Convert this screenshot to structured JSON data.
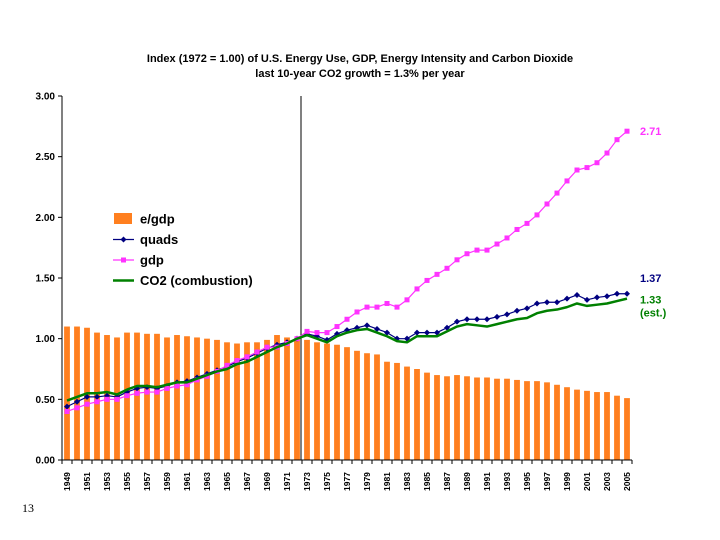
{
  "page_number": "13",
  "chart_data": {
    "type": "bar",
    "title": "Index (1972 = 1.00) of U.S. Energy Use, GDP,  Energy Intensity and Carbon Dioxide",
    "subtitle": "last 10-year CO2 growth = 1.3% per year",
    "xlabel": "",
    "ylabel": "",
    "ylim": [
      0,
      3
    ],
    "y_ticks": [
      "0.00",
      "0.50",
      "1.00",
      "1.50",
      "2.00",
      "2.50",
      "3.00"
    ],
    "x": [
      1949,
      1950,
      1951,
      1952,
      1953,
      1954,
      1955,
      1956,
      1957,
      1958,
      1959,
      1960,
      1961,
      1962,
      1963,
      1964,
      1965,
      1966,
      1967,
      1968,
      1969,
      1970,
      1971,
      1972,
      1973,
      1974,
      1975,
      1976,
      1977,
      1978,
      1979,
      1980,
      1981,
      1982,
      1983,
      1984,
      1985,
      1986,
      1987,
      1988,
      1989,
      1990,
      1991,
      1992,
      1993,
      1994,
      1995,
      1996,
      1997,
      1998,
      1999,
      2000,
      2001,
      2002,
      2003,
      2004,
      2005
    ],
    "x_tick_labels": [
      "1949",
      "1951",
      "1953",
      "1955",
      "1957",
      "1959",
      "1961",
      "1963",
      "1965",
      "1967",
      "1969",
      "1971",
      "1973",
      "1975",
      "1977",
      "1979",
      "1981",
      "1983",
      "1985",
      "1987",
      "1989",
      "1991",
      "1993",
      "1995",
      "1997",
      "1999",
      "2001",
      "2003",
      "2005"
    ],
    "reference_line_x": 1972,
    "legend_position": "upper-left",
    "grid": false,
    "series": [
      {
        "name": "e/gdp",
        "kind": "bar",
        "color": "#ff7f1f",
        "values": [
          1.1,
          1.1,
          1.09,
          1.05,
          1.03,
          1.01,
          1.05,
          1.05,
          1.04,
          1.04,
          1.01,
          1.03,
          1.02,
          1.01,
          1.0,
          0.99,
          0.97,
          0.96,
          0.97,
          0.97,
          0.99,
          1.03,
          1.01,
          1.0,
          0.99,
          0.97,
          0.96,
          0.95,
          0.93,
          0.9,
          0.88,
          0.87,
          0.81,
          0.8,
          0.77,
          0.75,
          0.72,
          0.7,
          0.69,
          0.7,
          0.69,
          0.68,
          0.68,
          0.67,
          0.67,
          0.66,
          0.65,
          0.65,
          0.64,
          0.62,
          0.6,
          0.58,
          0.57,
          0.56,
          0.56,
          0.53,
          0.51
        ]
      },
      {
        "name": "quads",
        "kind": "line",
        "color": "#000080",
        "marker": "diamond",
        "values": [
          0.44,
          0.48,
          0.52,
          0.52,
          0.53,
          0.52,
          0.56,
          0.59,
          0.6,
          0.59,
          0.61,
          0.64,
          0.65,
          0.68,
          0.71,
          0.74,
          0.77,
          0.81,
          0.84,
          0.88,
          0.92,
          0.95,
          0.97,
          1.0,
          1.04,
          1.02,
          0.99,
          1.04,
          1.07,
          1.09,
          1.11,
          1.08,
          1.05,
          1.0,
          1.0,
          1.05,
          1.05,
          1.05,
          1.09,
          1.14,
          1.16,
          1.16,
          1.16,
          1.18,
          1.2,
          1.23,
          1.25,
          1.29,
          1.3,
          1.3,
          1.33,
          1.36,
          1.32,
          1.34,
          1.35,
          1.37,
          1.37
        ]
      },
      {
        "name": "gdp",
        "kind": "line",
        "color": "#ff33ff",
        "marker": "square",
        "values": [
          0.4,
          0.43,
          0.46,
          0.48,
          0.5,
          0.5,
          0.53,
          0.55,
          0.56,
          0.56,
          0.59,
          0.61,
          0.62,
          0.66,
          0.69,
          0.73,
          0.78,
          0.82,
          0.85,
          0.89,
          0.93,
          0.93,
          0.96,
          1.0,
          1.06,
          1.05,
          1.05,
          1.1,
          1.16,
          1.22,
          1.26,
          1.26,
          1.29,
          1.26,
          1.32,
          1.41,
          1.48,
          1.53,
          1.58,
          1.65,
          1.7,
          1.73,
          1.73,
          1.78,
          1.83,
          1.9,
          1.95,
          2.02,
          2.11,
          2.2,
          2.3,
          2.39,
          2.41,
          2.45,
          2.53,
          2.64,
          2.71
        ]
      },
      {
        "name": "CO2 (combustion)",
        "kind": "line",
        "color": "#008000",
        "marker": "none",
        "values": [
          0.49,
          0.52,
          0.55,
          0.55,
          0.56,
          0.54,
          0.58,
          0.61,
          0.61,
          0.6,
          0.62,
          0.64,
          0.64,
          0.67,
          0.7,
          0.73,
          0.75,
          0.79,
          0.81,
          0.85,
          0.89,
          0.93,
          0.96,
          1.0,
          1.03,
          1.0,
          0.97,
          1.02,
          1.05,
          1.07,
          1.08,
          1.05,
          1.02,
          0.98,
          0.97,
          1.02,
          1.02,
          1.02,
          1.06,
          1.1,
          1.12,
          1.11,
          1.1,
          1.12,
          1.14,
          1.16,
          1.17,
          1.21,
          1.23,
          1.24,
          1.26,
          1.29,
          1.27,
          1.28,
          1.29,
          1.31,
          1.33
        ]
      }
    ],
    "end_labels": [
      {
        "text": "2.71",
        "value": 2.71,
        "color": "#ff33ff"
      },
      {
        "text": "1.37",
        "value": 1.37,
        "color": "#000080"
      },
      {
        "text": "1.33",
        "value": 1.33,
        "color": "#008000"
      },
      {
        "text": "(est.)",
        "value": 1.33,
        "color": "#008000"
      }
    ]
  }
}
